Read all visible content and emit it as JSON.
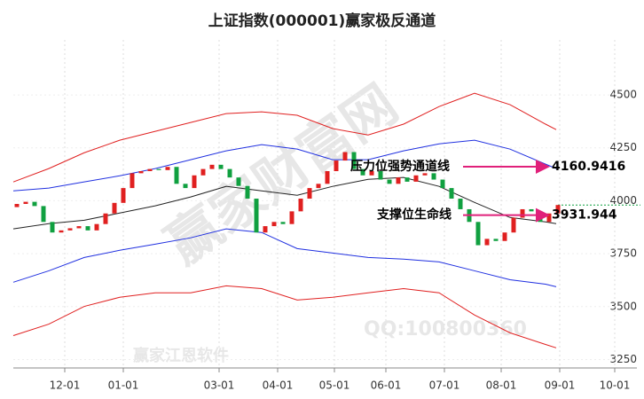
{
  "chart_data": {
    "type": "candlestick",
    "title": "上证指数(000001)赢家极反通道",
    "xlim": [
      0,
      340
    ],
    "xticks": [
      {
        "value": 29,
        "label": "12-01"
      },
      {
        "value": 62,
        "label": "01-01"
      },
      {
        "value": 116,
        "label": "03-01"
      },
      {
        "value": 149,
        "label": "04-01"
      },
      {
        "value": 181,
        "label": "05-01"
      },
      {
        "value": 210,
        "label": "06-01"
      },
      {
        "value": 243,
        "label": "07-01"
      },
      {
        "value": 275,
        "label": "08-01"
      },
      {
        "value": 308,
        "label": "09-01"
      },
      {
        "value": 339,
        "label": "10-01"
      }
    ],
    "ylim": [
      3210,
      4760
    ],
    "yticks": [
      3250,
      3500,
      3750,
      4000,
      4250,
      4500
    ],
    "grid": true,
    "up_color": "#e02020",
    "down_color": "#10a040",
    "candles": {
      "x": [
        2,
        7,
        12,
        17,
        22,
        27,
        32,
        37,
        42,
        47,
        52,
        57,
        62,
        67,
        72,
        77,
        82,
        87,
        92,
        97,
        102,
        107,
        112,
        117,
        122,
        127,
        132,
        137,
        142,
        147,
        152,
        157,
        162,
        167,
        172,
        177,
        182,
        187,
        192,
        197,
        202,
        207,
        212,
        217,
        222,
        227,
        232,
        237,
        242,
        247,
        252,
        257,
        262,
        267,
        272,
        277,
        282,
        287,
        292,
        297,
        302,
        307
      ],
      "open": [
        3970,
        3985,
        3995,
        3975,
        3900,
        3850,
        3860,
        3870,
        3880,
        3860,
        3890,
        3940,
        3990,
        4060,
        4130,
        4140,
        4150,
        4145,
        4160,
        4080,
        4060,
        4120,
        4150,
        4170,
        4150,
        4110,
        4070,
        4010,
        3850,
        3880,
        3900,
        3890,
        3950,
        4010,
        4060,
        4080,
        4140,
        4190,
        4230,
        4150,
        4120,
        4140,
        4100,
        4080,
        4110,
        4090,
        4120,
        4130,
        4100,
        4060,
        4010,
        3960,
        3900,
        3790,
        3820,
        3810,
        3850,
        3920,
        3960,
        3950,
        3900,
        3940
      ],
      "close": [
        3985,
        3995,
        3975,
        3900,
        3850,
        3860,
        3870,
        3880,
        3860,
        3890,
        3940,
        3990,
        4060,
        4130,
        4140,
        4150,
        4145,
        4160,
        4080,
        4060,
        4120,
        4150,
        4170,
        4150,
        4110,
        4070,
        4010,
        3850,
        3880,
        3900,
        3890,
        3950,
        4010,
        4060,
        4080,
        4140,
        4190,
        4230,
        4150,
        4120,
        4140,
        4100,
        4080,
        4110,
        4090,
        4120,
        4130,
        4100,
        4060,
        4010,
        3960,
        3900,
        3790,
        3820,
        3810,
        3850,
        3920,
        3960,
        3950,
        3900,
        3940,
        3980
      ]
    },
    "lines": {
      "x": [
        0,
        20,
        40,
        60,
        80,
        100,
        120,
        140,
        160,
        180,
        200,
        220,
        240,
        260,
        280,
        300,
        306
      ],
      "series": [
        {
          "color": "#e02020",
          "values": [
            4089,
            4152,
            4227,
            4286,
            4328,
            4370,
            4412,
            4420,
            4404,
            4341,
            4311,
            4362,
            4445,
            4508,
            4454,
            4362,
            4336
          ]
        },
        {
          "color": "#2030e0",
          "values": [
            4047,
            4060,
            4089,
            4118,
            4152,
            4194,
            4236,
            4265,
            4244,
            4194,
            4194,
            4236,
            4269,
            4286,
            4244,
            4173,
            4152
          ]
        },
        {
          "color": "#222222",
          "values": [
            3867,
            3892,
            3908,
            3942,
            3976,
            4018,
            4068,
            4047,
            4026,
            4068,
            4101,
            4110,
            4068,
            3992,
            3921,
            3900,
            3892
          ]
        },
        {
          "color": "#2030e0",
          "values": [
            3615,
            3669,
            3732,
            3766,
            3795,
            3825,
            3867,
            3850,
            3774,
            3753,
            3732,
            3724,
            3711,
            3669,
            3627,
            3606,
            3594
          ]
        },
        {
          "color": "#e02020",
          "values": [
            3363,
            3417,
            3501,
            3544,
            3565,
            3565,
            3598,
            3585,
            3531,
            3544,
            3565,
            3585,
            3565,
            3460,
            3376,
            3321,
            3305
          ]
        }
      ]
    },
    "last_close_line": 3980,
    "annotations": [
      {
        "text": "压力位强势通道线",
        "value": 4160.9416
      },
      {
        "text": "支撑位生命线",
        "value": 3931.944
      }
    ],
    "watermarks": [
      "赢家江恩软件",
      "QQ:100800360",
      "赢家财富网"
    ]
  }
}
